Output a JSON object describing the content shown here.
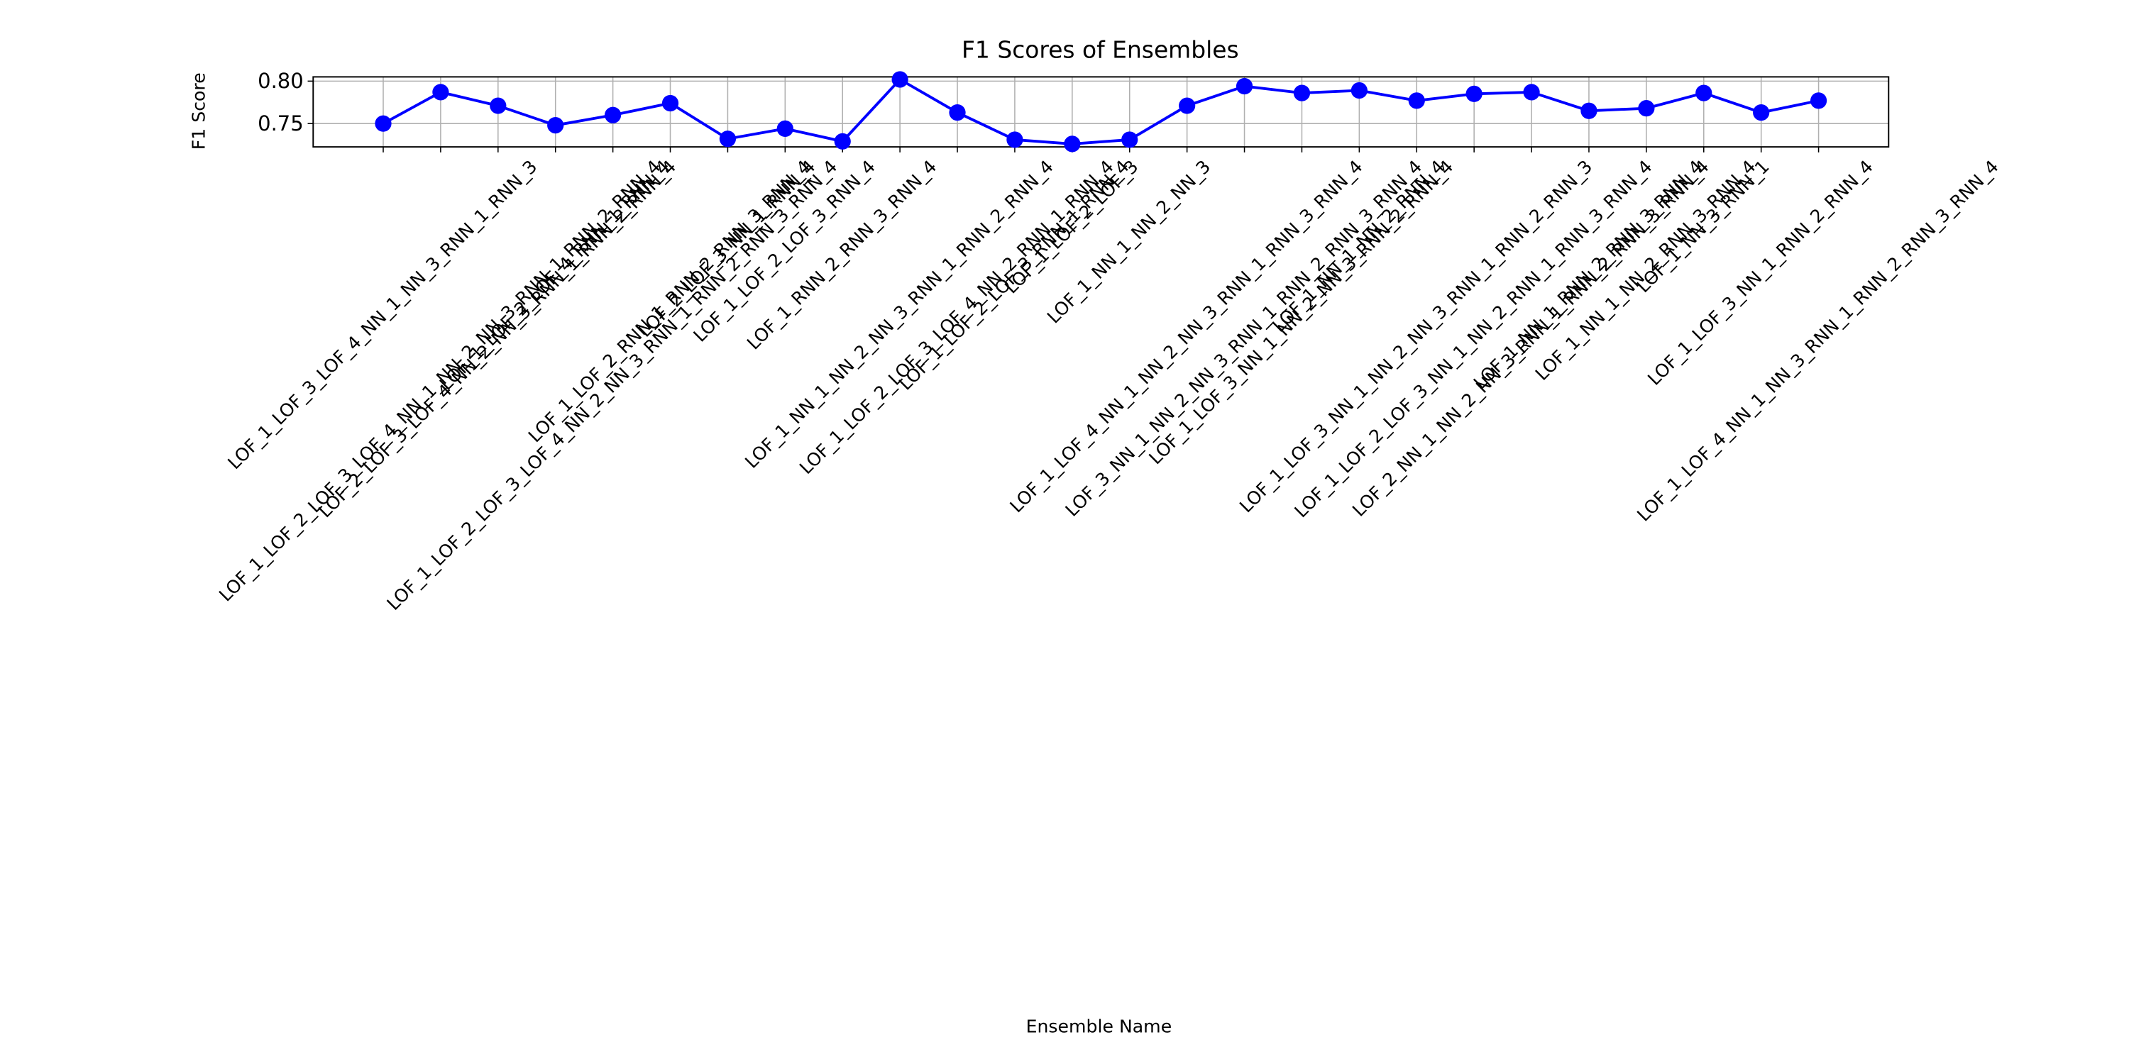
{
  "chart_data": {
    "type": "line",
    "title": "F1 Scores of Ensembles",
    "xlabel": "Ensemble Name",
    "ylabel": "F1 Score",
    "categories": [
      "LOF_1_LOF_3_LOF_4_NN_1_NN_3_RNN_1_RNN_3",
      "LOF_1_LOF_2_LOF_3_LOF_4_NN_1_NN_2_NN_3_RNN_1_RNN_2_RNN_4",
      "LOF_2_LOF_3_LOF_4_NN_2_NN_3_RNN_1_RNN_2_RNN_4",
      "LOF_1_LOF_2_LOF_4_RNN_1_RNN_4",
      "LOF_1_LOF_2_LOF_3_LOF_4_NN_2_NN_3_RNN_1_RNN_2_RNN_3_RNN_4",
      "LOF_1_LOF_2_RNN_1_RNN_2_RNN_3_RNN_4",
      "LOF_2_LOF_3_NN_1_RNN_4",
      "LOF_1_LOF_2_LOF_3_RNN_4",
      "LOF_1_RNN_2_RNN_3_RNN_4",
      "LOF_1_NN_1_NN_2_NN_3_RNN_1_RNN_2_RNN_4",
      "LOF_1_LOF_2_LOF_3_LOF_4_NN_2_RNN_1_RNN_4",
      "LOF_1_LOF_2_LOF_3_RNN_1_RNN_4",
      "LOF_1_LOF_2_LOF_3",
      "LOF_1_NN_1_NN_2_NN_3",
      "LOF_1_LOF_4_NN_1_NN_2_NN_3_RNN_1_RNN_3_RNN_4",
      "LOF_3_NN_1_NN_2_NN_3_RNN_1_RNN_2_RNN_3_RNN_4",
      "LOF_1_LOF_3_NN_1_NN_2_NN_3_RNN_2_RNN_4",
      "LOF_1_NN_1_NN_2_RNN_4",
      "LOF_1_LOF_3_NN_1_NN_2_NN_3_RNN_1_RNN_2_RNN_3",
      "LOF_1_LOF_2_LOF_3_NN_1_NN_2_RNN_1_RNN_3_RNN_4",
      "LOF_2_NN_1_NN_2_NN_3_RNN_1_RNN_2_RNN_3_RNN_4",
      "LOF_1_NN_1_RNN_2_RNN_3_RNN_4",
      "LOF_1_NN_1_NN_2_RNN_3_RNN_4",
      "LOF_1_NN_3_RNN_1",
      "LOF_1_LOF_3_NN_1_RNN_2_RNN_4",
      "LOF_1_LOF_4_NN_1_NN_3_RNN_1_RNN_2_RNN_3_RNN_4"
    ],
    "values": [
      0.75,
      0.787,
      0.771,
      0.748,
      0.76,
      0.774,
      0.732,
      0.744,
      0.729,
      0.802,
      0.763,
      0.731,
      0.726,
      0.731,
      0.771,
      0.794,
      0.786,
      0.789,
      0.777,
      0.785,
      0.787,
      0.765,
      0.768,
      0.786,
      0.763,
      0.777
    ],
    "color": "#0000ff",
    "ylim": [
      0.7225,
      0.805
    ],
    "yticks": [
      0.75,
      {
        "value": 0.8,
        "label": "0.80"
      }
    ],
    "grid": true
  }
}
